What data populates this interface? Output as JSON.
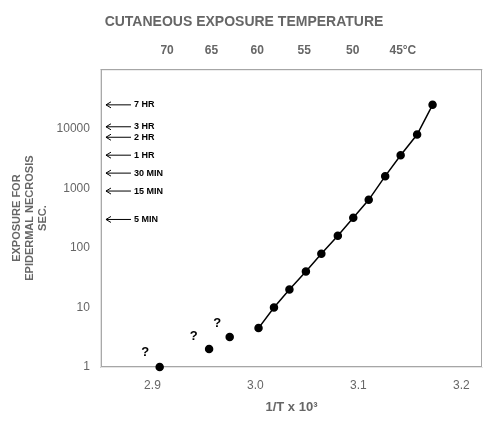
{
  "chart_data": {
    "type": "line",
    "title": "CUTANEOUS EXPOSURE TEMPERATURE",
    "xlabel": "1/T x 10³",
    "ylabel": [
      "EXPOSURE FOR",
      "EPIDERMAL NECROSIS",
      "SEC."
    ],
    "log": "y",
    "grid": false,
    "xlim": [
      2.85,
      3.22
    ],
    "xticks": [
      2.9,
      {
        "value": 3,
        "label": "3.0"
      },
      3.1,
      3.2
    ],
    "ylim": [
      1,
      100000
    ],
    "yticks": [
      1,
      10,
      100,
      1000,
      10000
    ],
    "x2lim": [
      2.85,
      3.22
    ],
    "x2ticks": [
      {
        "value": 2.914177,
        "label": "70"
      },
      {
        "value": 2.957267,
        "label": "65"
      },
      {
        "value": 3.001651,
        "label": "60"
      },
      {
        "value": 3.047387,
        "label": "55"
      },
      {
        "value": 3.094538,
        "label": "50"
      },
      {
        "value": 3.143171,
        "label": "45°C"
      }
    ],
    "series": [
      {
        "type": "line",
        "x": [
          3.003,
          3.018,
          3.033,
          3.049,
          3.064,
          3.08,
          3.095,
          3.11,
          3.126,
          3.141,
          3.157,
          3.172
        ],
        "values": [
          4.5,
          10,
          20,
          40,
          80,
          160,
          320,
          640,
          1600,
          3600,
          8000,
          25200
        ],
        "color": "#000000",
        "marker": "circle",
        "line_style": "solid"
      },
      {
        "type": "scatter",
        "x": [
          2.907,
          2.955,
          2.975
        ],
        "values": [
          1.0,
          2.0,
          3.2
        ],
        "color": "#000000",
        "marker": "circle"
      }
    ],
    "annotations": [
      {
        "x": 2.893,
        "y": 1.35,
        "text": "?"
      },
      {
        "x": 2.94,
        "y": 2.5,
        "text": "?"
      },
      {
        "x": 2.963,
        "y": 4.2,
        "text": "?"
      }
    ],
    "arrows": [
      {
        "y": 25200,
        "label": "7 HR"
      },
      {
        "y": 10800,
        "label": "3 HR"
      },
      {
        "y": 7200,
        "label": "2 HR"
      },
      {
        "y": 3600,
        "label": "1 HR"
      },
      {
        "y": 1800,
        "label": "30 MIN"
      },
      {
        "y": 900,
        "label": "15 MIN"
      },
      {
        "y": 300,
        "label": "5 MIN"
      }
    ]
  }
}
